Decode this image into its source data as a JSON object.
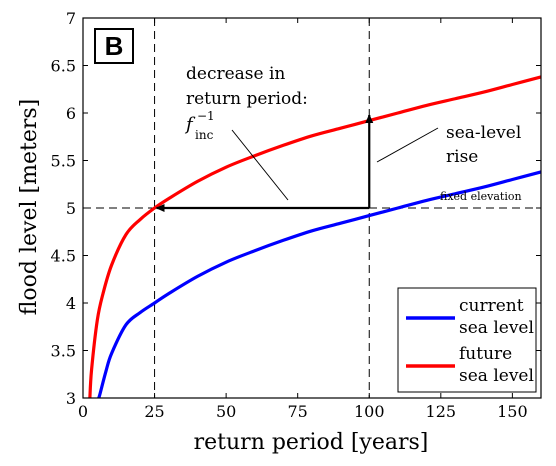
{
  "panel_label": "B",
  "chart_data": {
    "type": "line",
    "xlabel": "return period [years]",
    "ylabel": "flood level [meters]",
    "xlim": [
      0,
      160
    ],
    "ylim": [
      3,
      7
    ],
    "xticks": [
      0,
      25,
      50,
      75,
      100,
      125,
      150
    ],
    "yticks": [
      3,
      3.5,
      4,
      4.5,
      5,
      5.5,
      6,
      6.5,
      7
    ],
    "ytick_labels": [
      "3",
      "3.5",
      "4",
      "4.5",
      "5",
      "5.5",
      "6",
      "6.5",
      "7"
    ],
    "grid": false,
    "legend_position": "bottom-right",
    "series": [
      {
        "name_lines": [
          "current",
          "sea level"
        ],
        "color": "#0000ff",
        "x": [
          5.5,
          6,
          8,
          10,
          15,
          20,
          25,
          30,
          40,
          50,
          60,
          70,
          80,
          90,
          100,
          110,
          120,
          130,
          140,
          150,
          160
        ],
        "y": [
          3.0,
          3.05,
          3.28,
          3.47,
          3.77,
          3.9,
          4.0,
          4.1,
          4.28,
          4.43,
          4.55,
          4.66,
          4.76,
          4.84,
          4.92,
          5.0,
          5.08,
          5.15,
          5.22,
          5.3,
          5.38
        ]
      },
      {
        "name_lines": [
          "future",
          "sea level"
        ],
        "color": "#ff0000",
        "x": [
          2.4,
          3,
          5,
          7,
          10,
          15,
          20,
          25,
          30,
          40,
          50,
          60,
          70,
          80,
          90,
          100,
          110,
          120,
          130,
          140,
          150,
          160
        ],
        "y": [
          3.0,
          3.3,
          3.82,
          4.1,
          4.4,
          4.72,
          4.88,
          5.0,
          5.1,
          5.28,
          5.43,
          5.55,
          5.66,
          5.76,
          5.84,
          5.92,
          6.0,
          6.08,
          6.15,
          6.22,
          6.3,
          6.38
        ]
      }
    ],
    "reference_lines": {
      "horizontal_y": 5,
      "vertical_x": [
        25,
        100
      ]
    },
    "annotations": {
      "fixed_elevation": "fixed elevation",
      "sea_level_rise_lines": [
        "sea-level",
        "rise"
      ],
      "decrease_lines": [
        "decrease in",
        "return period:"
      ],
      "f_base": "f",
      "f_sup": "−1",
      "f_sub": "inc"
    },
    "arrows": {
      "vertical": {
        "x": 100,
        "from_y": 5,
        "to_y": 6
      },
      "horizontal": {
        "y": 5,
        "from_x": 100,
        "to_x": 25
      }
    }
  }
}
